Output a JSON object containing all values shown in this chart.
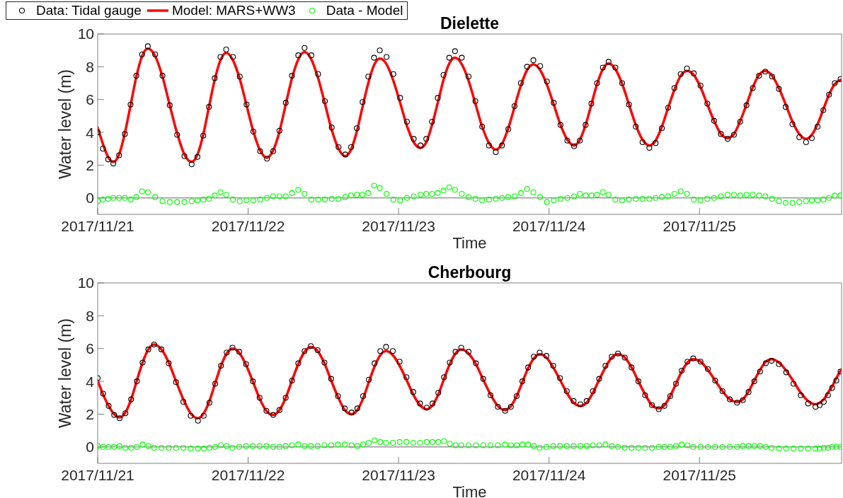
{
  "chart_data": [
    {
      "type": "line",
      "title": "Dielette",
      "xlabel": "Time",
      "ylabel": "Water level (m)",
      "x": [
        "2017-11-21T00:00",
        "2017-11-21T00:50",
        "2017-11-21T01:40",
        "2017-11-21T02:30",
        "2017-11-21T03:25",
        "2017-11-21T04:20",
        "2017-11-21T05:15",
        "2017-11-21T06:10",
        "2017-11-21T07:05",
        "2017-11-21T08:00",
        "2017-11-21T09:10",
        "2017-11-21T10:20",
        "2017-11-21T11:30",
        "2017-11-21T12:40",
        "2017-11-21T13:50",
        "2017-11-21T15:00",
        "2017-11-21T15:55",
        "2017-11-21T16:50",
        "2017-11-21T17:45",
        "2017-11-21T18:40",
        "2017-11-21T19:35",
        "2017-11-21T20:30",
        "2017-11-21T21:35",
        "2017-11-21T22:40",
        "2017-11-21T23:45",
        "2017-11-22T00:50",
        "2017-11-22T01:55",
        "2017-11-22T03:00",
        "2017-11-22T04:00",
        "2017-11-22T05:00",
        "2017-11-22T06:00",
        "2017-11-22T07:00",
        "2017-11-22T08:00",
        "2017-11-22T09:00",
        "2017-11-22T10:05",
        "2017-11-22T11:10",
        "2017-11-22T12:15",
        "2017-11-22T13:20",
        "2017-11-22T14:25",
        "2017-11-22T15:30",
        "2017-11-22T16:25",
        "2017-11-22T17:20",
        "2017-11-22T18:15",
        "2017-11-22T19:10",
        "2017-11-22T20:05",
        "2017-11-22T21:00",
        "2017-11-22T22:05",
        "2017-11-22T23:10",
        "2017-11-23T00:15",
        "2017-11-23T01:20",
        "2017-11-23T02:25",
        "2017-11-23T03:30",
        "2017-11-23T04:25",
        "2017-11-23T05:20",
        "2017-11-23T06:15",
        "2017-11-23T07:10",
        "2017-11-23T08:05",
        "2017-11-23T09:00",
        "2017-11-23T10:05",
        "2017-11-23T11:10",
        "2017-11-23T12:15",
        "2017-11-23T13:20",
        "2017-11-23T14:25",
        "2017-11-23T15:30",
        "2017-11-23T16:30",
        "2017-11-23T17:30",
        "2017-11-23T18:30",
        "2017-11-23T19:30",
        "2017-11-23T20:30",
        "2017-11-23T21:30",
        "2017-11-23T22:35",
        "2017-11-23T23:40",
        "2017-11-24T00:45",
        "2017-11-24T01:50",
        "2017-11-24T02:55",
        "2017-11-24T04:00",
        "2017-11-24T04:55",
        "2017-11-24T05:50",
        "2017-11-24T06:45",
        "2017-11-24T07:40",
        "2017-11-24T08:35",
        "2017-11-24T09:30",
        "2017-11-24T10:35",
        "2017-11-24T11:40",
        "2017-11-24T12:45",
        "2017-11-24T13:50",
        "2017-11-24T14:55",
        "2017-11-24T16:00",
        "2017-11-24T17:00",
        "2017-11-24T18:00",
        "2017-11-24T19:00",
        "2017-11-24T20:00",
        "2017-11-24T21:00",
        "2017-11-24T22:00",
        "2017-11-24T23:05",
        "2017-11-25T00:10",
        "2017-11-25T01:15",
        "2017-11-25T02:20",
        "2017-11-25T03:25",
        "2017-11-25T04:30",
        "2017-11-25T05:30",
        "2017-11-25T06:30",
        "2017-11-25T07:30",
        "2017-11-25T08:30",
        "2017-11-25T09:30",
        "2017-11-25T10:30",
        "2017-11-25T11:35",
        "2017-11-25T12:40",
        "2017-11-25T13:45",
        "2017-11-25T14:50",
        "2017-11-25T15:55",
        "2017-11-25T17:00",
        "2017-11-25T17:55",
        "2017-11-25T18:50",
        "2017-11-25T19:45",
        "2017-11-25T20:40",
        "2017-11-25T21:35",
        "2017-11-25T22:30"
      ],
      "series": [
        {
          "name": "Data: Tidal gauge",
          "type": "scatter",
          "marker": "circle",
          "color": "#000000",
          "values": [
            4.0,
            3.0,
            2.35,
            2.1,
            2.6,
            3.9,
            5.7,
            7.45,
            8.75,
            9.25,
            8.75,
            7.45,
            5.65,
            3.85,
            2.55,
            2.05,
            2.5,
            3.8,
            5.55,
            7.3,
            8.6,
            9.05,
            8.6,
            7.4,
            5.7,
            4.05,
            2.85,
            2.4,
            2.85,
            4.1,
            5.8,
            7.45,
            8.7,
            9.15,
            8.7,
            7.55,
            5.9,
            4.3,
            3.1,
            2.65,
            3.1,
            4.25,
            5.85,
            7.4,
            8.55,
            9.0,
            8.6,
            7.55,
            6.1,
            4.65,
            3.6,
            3.2,
            3.6,
            4.65,
            6.1,
            7.5,
            8.55,
            8.95,
            8.55,
            7.4,
            5.9,
            4.35,
            3.2,
            2.8,
            3.2,
            4.2,
            5.6,
            7.0,
            8.0,
            8.4,
            8.05,
            7.1,
            5.8,
            4.45,
            3.5,
            3.15,
            3.5,
            4.45,
            5.75,
            7.0,
            7.95,
            8.3,
            7.95,
            7.0,
            5.7,
            4.35,
            3.4,
            3.05,
            3.35,
            4.25,
            5.5,
            6.7,
            7.55,
            7.9,
            7.6,
            6.85,
            5.75,
            4.7,
            3.9,
            3.6,
            3.85,
            4.65,
            5.65,
            6.7,
            7.45,
            7.7,
            7.4,
            6.65,
            5.55,
            4.5,
            3.7,
            3.4,
            3.65,
            4.35,
            5.35,
            6.3,
            7.0,
            7.25
          ]
        },
        {
          "name": "Model: MARS+WW3",
          "color": "#ff0000",
          "values": [
            4.3,
            3.3,
            2.5,
            2.2,
            2.65,
            3.95,
            5.65,
            7.4,
            8.65,
            9.1,
            8.65,
            7.4,
            5.65,
            3.95,
            2.65,
            2.2,
            2.65,
            3.85,
            5.55,
            7.2,
            8.4,
            8.85,
            8.4,
            7.25,
            5.65,
            4.05,
            2.9,
            2.45,
            2.9,
            4.05,
            5.7,
            7.3,
            8.45,
            8.9,
            8.45,
            7.3,
            5.75,
            4.15,
            3.0,
            2.55,
            2.95,
            4.05,
            5.55,
            7.0,
            8.1,
            8.5,
            8.15,
            7.15,
            5.8,
            4.4,
            3.4,
            3.05,
            3.4,
            4.45,
            5.8,
            7.2,
            8.2,
            8.55,
            8.15,
            7.15,
            5.75,
            4.35,
            3.35,
            2.95,
            3.3,
            4.25,
            5.55,
            6.85,
            7.8,
            8.15,
            7.8,
            6.9,
            5.7,
            4.45,
            3.55,
            3.2,
            3.55,
            4.45,
            5.7,
            6.95,
            7.85,
            8.2,
            7.85,
            6.95,
            5.7,
            4.45,
            3.55,
            3.2,
            3.5,
            4.35,
            5.5,
            6.6,
            7.45,
            7.75,
            7.5,
            6.75,
            5.7,
            4.7,
            3.9,
            3.65,
            3.9,
            4.7,
            5.7,
            6.75,
            7.5,
            7.75,
            7.45,
            6.7,
            5.7,
            4.65,
            3.9,
            3.6,
            3.85,
            4.5,
            5.4,
            6.3,
            6.95,
            7.2
          ]
        },
        {
          "name": "Data - Model",
          "type": "scatter",
          "marker": "circle",
          "color": "#00ff00",
          "values": [
            -0.2,
            -0.1,
            -0.05,
            0.0,
            0.0,
            0.0,
            -0.1,
            0.05,
            0.4,
            0.35,
            0.05,
            -0.2,
            -0.25,
            -0.25,
            -0.25,
            -0.2,
            -0.15,
            -0.1,
            -0.05,
            0.15,
            0.35,
            0.2,
            -0.1,
            -0.2,
            -0.15,
            -0.15,
            -0.1,
            0.0,
            0.1,
            0.1,
            0.1,
            0.3,
            0.5,
            0.25,
            -0.1,
            -0.1,
            -0.1,
            -0.05,
            -0.05,
            0.05,
            0.15,
            0.2,
            0.2,
            0.3,
            0.75,
            0.6,
            0.25,
            -0.1,
            -0.15,
            0.0,
            0.1,
            0.2,
            0.25,
            0.25,
            0.3,
            0.45,
            0.65,
            0.5,
            0.25,
            0.05,
            -0.05,
            -0.15,
            -0.1,
            -0.05,
            0.0,
            0.05,
            0.1,
            0.3,
            0.55,
            0.35,
            0.05,
            -0.25,
            -0.15,
            -0.05,
            0.0,
            0.1,
            0.25,
            0.15,
            0.15,
            0.2,
            0.35,
            0.2,
            -0.1,
            -0.15,
            -0.1,
            -0.05,
            -0.05,
            -0.05,
            0.0,
            0.05,
            0.1,
            0.25,
            0.4,
            0.25,
            -0.1,
            -0.15,
            -0.05,
            0.0,
            0.1,
            0.2,
            0.2,
            0.15,
            0.2,
            0.2,
            0.15,
            0.1,
            -0.05,
            -0.2,
            -0.3,
            -0.3,
            -0.25,
            -0.2,
            -0.15,
            -0.15,
            -0.1,
            0.0,
            0.15,
            0.15
          ]
        }
      ],
      "xlim": [
        "2017-11-21",
        "2017-11-25T22:40"
      ],
      "xticks": [
        {
          "value": "2017-11-21",
          "label": "2017/11/21"
        },
        {
          "value": "2017-11-22",
          "label": "2017/11/22"
        },
        {
          "value": "2017-11-23",
          "label": "2017/11/23"
        },
        {
          "value": "2017-11-24",
          "label": "2017/11/24"
        },
        {
          "value": "2017-11-25",
          "label": "2017/11/25"
        }
      ],
      "ylim": [
        -1,
        10
      ],
      "yticks": [
        0,
        2,
        4,
        6,
        8,
        10
      ],
      "ref_lines": [
        {
          "axis": "y",
          "value": 0,
          "color": "#666666"
        }
      ],
      "legend": "top left"
    },
    {
      "type": "line",
      "title": "Cherbourg",
      "xlabel": "Time",
      "ylabel": "Water level (m)",
      "x": [
        "2017-11-21T00:00",
        "2017-11-21T00:52",
        "2017-11-21T01:45",
        "2017-11-21T02:38",
        "2017-11-21T03:30",
        "2017-11-21T04:25",
        "2017-11-21T05:20",
        "2017-11-21T06:15",
        "2017-11-21T07:10",
        "2017-11-21T08:05",
        "2017-11-21T09:00",
        "2017-11-21T10:10",
        "2017-11-21T11:20",
        "2017-11-21T12:30",
        "2017-11-21T13:40",
        "2017-11-21T14:50",
        "2017-11-21T16:00",
        "2017-11-21T16:55",
        "2017-11-21T17:50",
        "2017-11-21T18:45",
        "2017-11-21T19:40",
        "2017-11-21T20:35",
        "2017-11-21T21:30",
        "2017-11-21T22:35",
        "2017-11-21T23:40",
        "2017-11-22T00:45",
        "2017-11-22T01:50",
        "2017-11-22T02:55",
        "2017-11-22T04:00",
        "2017-11-22T05:00",
        "2017-11-22T06:00",
        "2017-11-22T07:00",
        "2017-11-22T08:00",
        "2017-11-22T09:00",
        "2017-11-22T10:00",
        "2017-11-22T11:05",
        "2017-11-22T12:10",
        "2017-11-22T13:15",
        "2017-11-22T14:20",
        "2017-11-22T15:25",
        "2017-11-22T16:30",
        "2017-11-22T17:25",
        "2017-11-22T18:20",
        "2017-11-22T19:15",
        "2017-11-22T20:10",
        "2017-11-22T21:05",
        "2017-11-22T22:00",
        "2017-11-22T23:05",
        "2017-11-23T00:10",
        "2017-11-23T01:15",
        "2017-11-23T02:20",
        "2017-11-23T03:25",
        "2017-11-23T04:30",
        "2017-11-23T05:25",
        "2017-11-23T06:20",
        "2017-11-23T07:15",
        "2017-11-23T08:10",
        "2017-11-23T09:05",
        "2017-11-23T10:00",
        "2017-11-23T11:10",
        "2017-11-23T12:20",
        "2017-11-23T13:30",
        "2017-11-23T14:40",
        "2017-11-23T15:50",
        "2017-11-23T17:00",
        "2017-11-23T17:55",
        "2017-11-23T18:50",
        "2017-11-23T19:45",
        "2017-11-23T20:40",
        "2017-11-23T21:35",
        "2017-11-23T22:30",
        "2017-11-23T23:35",
        "2017-11-24T00:40",
        "2017-11-24T01:45",
        "2017-11-24T02:50",
        "2017-11-24T03:55",
        "2017-11-24T05:00",
        "2017-11-24T06:00",
        "2017-11-24T07:00",
        "2017-11-24T08:00",
        "2017-11-24T09:00",
        "2017-11-24T10:00",
        "2017-11-24T11:00",
        "2017-11-24T12:05",
        "2017-11-24T13:10",
        "2017-11-24T14:15",
        "2017-11-24T15:20",
        "2017-11-24T16:25",
        "2017-11-24T17:30",
        "2017-11-24T18:25",
        "2017-11-24T19:20",
        "2017-11-24T20:15",
        "2017-11-24T21:10",
        "2017-11-24T22:05",
        "2017-11-24T23:00",
        "2017-11-25T00:10",
        "2017-11-25T01:20",
        "2017-11-25T02:30",
        "2017-11-25T03:40",
        "2017-11-25T04:50",
        "2017-11-25T06:00",
        "2017-11-25T06:55",
        "2017-11-25T07:50",
        "2017-11-25T08:45",
        "2017-11-25T09:40",
        "2017-11-25T10:35",
        "2017-11-25T11:30",
        "2017-11-25T12:40",
        "2017-11-25T13:50",
        "2017-11-25T15:00",
        "2017-11-25T16:10",
        "2017-11-25T17:20",
        "2017-11-25T18:30",
        "2017-11-25T19:10",
        "2017-11-25T19:50",
        "2017-11-25T20:30",
        "2017-11-25T21:10",
        "2017-11-25T21:50",
        "2017-11-25T22:30"
      ],
      "series": [
        {
          "type": "scatter",
          "marker": "circle",
          "color": "#000000",
          "values": [
            4.2,
            3.25,
            2.5,
            1.95,
            1.75,
            2.05,
            2.9,
            4.0,
            5.15,
            5.95,
            6.25,
            5.95,
            5.1,
            3.95,
            2.75,
            1.9,
            1.6,
            1.9,
            2.7,
            3.85,
            4.95,
            5.75,
            6.05,
            5.8,
            5.05,
            4.0,
            3.0,
            2.2,
            1.95,
            2.25,
            3.0,
            4.05,
            5.1,
            5.85,
            6.15,
            5.9,
            5.15,
            4.15,
            3.1,
            2.35,
            2.1,
            2.35,
            3.1,
            4.1,
            5.1,
            5.85,
            6.1,
            5.85,
            5.2,
            4.25,
            3.35,
            2.65,
            2.4,
            2.65,
            3.3,
            4.25,
            5.15,
            5.8,
            6.05,
            5.8,
            5.1,
            4.15,
            3.15,
            2.45,
            2.2,
            2.45,
            3.1,
            4.0,
            4.85,
            5.5,
            5.75,
            5.55,
            4.95,
            4.2,
            3.4,
            2.8,
            2.6,
            2.8,
            3.4,
            4.15,
            4.95,
            5.5,
            5.7,
            5.45,
            4.85,
            4.0,
            3.15,
            2.55,
            2.3,
            2.5,
            3.1,
            3.85,
            4.65,
            5.2,
            5.4,
            5.2,
            4.75,
            4.05,
            3.4,
            2.9,
            2.7,
            2.85,
            3.35,
            4.0,
            4.6,
            5.1,
            5.25,
            5.05,
            4.55,
            3.85,
            3.15,
            2.65,
            2.45,
            2.55,
            2.75,
            3.15,
            3.6,
            4.05,
            4.6
          ]
        },
        {
          "color": "#ff0000",
          "values": [
            4.05,
            3.2,
            2.5,
            2.0,
            1.8,
            2.1,
            2.9,
            4.05,
            5.15,
            5.95,
            6.25,
            5.95,
            5.15,
            4.0,
            2.9,
            2.05,
            1.75,
            2.05,
            2.8,
            3.9,
            4.95,
            5.7,
            6.0,
            5.75,
            5.0,
            4.0,
            2.95,
            2.2,
            1.95,
            2.25,
            3.0,
            4.05,
            5.05,
            5.8,
            6.1,
            5.85,
            5.1,
            4.05,
            3.05,
            2.25,
            2.0,
            2.25,
            2.95,
            3.95,
            4.9,
            5.6,
            5.85,
            5.6,
            4.95,
            4.1,
            3.2,
            2.55,
            2.3,
            2.55,
            3.2,
            4.15,
            5.05,
            5.7,
            5.95,
            5.7,
            5.05,
            4.1,
            3.2,
            2.5,
            2.25,
            2.5,
            3.1,
            3.95,
            4.8,
            5.4,
            5.65,
            5.45,
            4.85,
            4.1,
            3.3,
            2.7,
            2.5,
            2.7,
            3.3,
            4.1,
            4.85,
            5.45,
            5.65,
            5.45,
            4.85,
            4.0,
            3.2,
            2.55,
            2.35,
            2.55,
            3.1,
            3.85,
            4.6,
            5.15,
            5.35,
            5.2,
            4.7,
            4.05,
            3.4,
            2.9,
            2.75,
            2.9,
            3.4,
            4.05,
            4.7,
            5.2,
            5.35,
            5.15,
            4.65,
            4.0,
            3.3,
            2.8,
            2.6,
            2.7,
            2.9,
            3.3,
            3.7,
            4.2,
            4.65
          ]
        },
        {
          "type": "scatter",
          "marker": "circle",
          "color": "#00ff00",
          "values": [
            0.05,
            0.0,
            0.0,
            0.0,
            0.05,
            -0.05,
            -0.05,
            0.0,
            0.15,
            0.05,
            -0.05,
            -0.05,
            -0.05,
            -0.05,
            -0.05,
            -0.1,
            -0.1,
            -0.1,
            -0.05,
            0.0,
            0.1,
            0.05,
            -0.05,
            0.0,
            0.05,
            0.05,
            0.05,
            0.05,
            0.0,
            0.0,
            0.05,
            0.1,
            0.15,
            0.05,
            0.05,
            0.05,
            0.1,
            0.1,
            0.15,
            0.15,
            0.1,
            0.05,
            0.15,
            0.25,
            0.4,
            0.3,
            0.25,
            0.25,
            0.3,
            0.3,
            0.25,
            0.25,
            0.3,
            0.3,
            0.3,
            0.35,
            0.2,
            0.1,
            0.1,
            0.1,
            0.1,
            0.1,
            0.1,
            0.1,
            0.15,
            0.1,
            0.1,
            0.15,
            0.15,
            0.05,
            -0.05,
            0.0,
            0.05,
            0.05,
            0.05,
            0.05,
            0.05,
            0.05,
            0.1,
            0.1,
            0.15,
            0.05,
            0.0,
            -0.05,
            -0.05,
            -0.05,
            -0.05,
            -0.05,
            0.0,
            0.0,
            0.0,
            0.05,
            0.15,
            0.1,
            0.0,
            0.0,
            0.0,
            0.0,
            0.0,
            0.0,
            0.0,
            0.05,
            0.05,
            0.05,
            0.05,
            0.0,
            -0.05,
            -0.1,
            -0.1,
            -0.1,
            -0.1,
            -0.1,
            -0.1,
            -0.1,
            -0.05,
            -0.05,
            0.0,
            0.0,
            0.0
          ]
        }
      ],
      "xlim": [
        "2017-11-21",
        "2017-11-25T22:40"
      ],
      "xticks": [
        {
          "value": "2017-11-21",
          "label": "2017/11/21"
        },
        {
          "value": "2017-11-22",
          "label": "2017/11/22"
        },
        {
          "value": "2017-11-23",
          "label": "2017/11/23"
        },
        {
          "value": "2017-11-24",
          "label": "2017/11/24"
        },
        {
          "value": "2017-11-25",
          "label": "2017/11/25"
        }
      ],
      "ylim": [
        -1,
        10
      ],
      "yticks": [
        0,
        2,
        4,
        6,
        8,
        10
      ],
      "ref_lines": [
        {
          "axis": "y",
          "value": 0,
          "color": "#666666"
        }
      ]
    }
  ]
}
